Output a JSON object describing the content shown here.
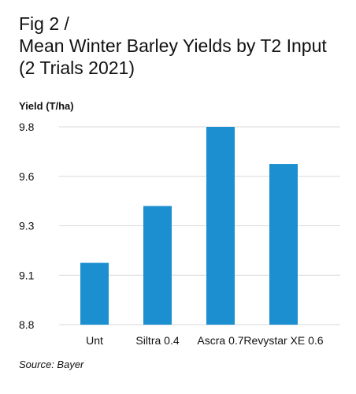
{
  "header": {
    "fig_label": "Fig 2 /",
    "title_line1": "Mean Winter Barley Yields by T2 Input",
    "title_line2": "(2 Trials 2021)"
  },
  "footer": {
    "source": "Source: Bayer"
  },
  "colors": {
    "bar": "#1b8fcf",
    "grid": "#d9d9d9",
    "text": "#111111"
  },
  "chart_data": {
    "type": "bar",
    "title": "Mean Winter Barley Yields by T2 Input (2 Trials 2021)",
    "xlabel": "",
    "ylabel": "Yield (T/ha)",
    "categories": [
      "Unt",
      "Siltra 0.4",
      "Ascra 0.7",
      "Revystar XE 0.6"
    ],
    "values": [
      9.15,
      9.42,
      9.8,
      9.65
    ],
    "yticks": [
      8.8,
      9.1,
      9.3,
      9.6,
      9.8
    ],
    "ylim": [
      8.8,
      9.8
    ],
    "grid": true,
    "legend": "none"
  }
}
